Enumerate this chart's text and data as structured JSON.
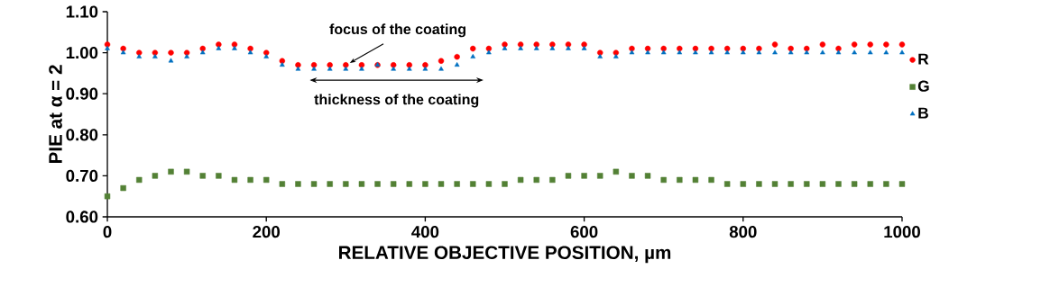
{
  "chart_data": {
    "type": "scatter",
    "xlabel": "RELATIVE OBJECTIVE POSITION, µm",
    "ylabel": "PIE at α = 2",
    "x": [
      0,
      20,
      40,
      60,
      80,
      100,
      120,
      140,
      160,
      180,
      200,
      220,
      240,
      260,
      280,
      300,
      320,
      340,
      360,
      380,
      400,
      420,
      440,
      460,
      480,
      500,
      520,
      540,
      560,
      580,
      600,
      620,
      640,
      660,
      680,
      700,
      720,
      740,
      760,
      780,
      800,
      820,
      840,
      860,
      880,
      900,
      920,
      940,
      960,
      980,
      1000
    ],
    "series": [
      {
        "name": "R",
        "color": "#ff0000",
        "marker": "circle",
        "values": [
          1.02,
          1.01,
          1.0,
          1.0,
          1.0,
          1.0,
          1.01,
          1.02,
          1.02,
          1.01,
          1.0,
          0.98,
          0.97,
          0.97,
          0.97,
          0.97,
          0.97,
          0.97,
          0.97,
          0.97,
          0.97,
          0.98,
          0.99,
          1.01,
          1.01,
          1.02,
          1.02,
          1.02,
          1.02,
          1.02,
          1.02,
          1.0,
          1.0,
          1.01,
          1.01,
          1.01,
          1.01,
          1.01,
          1.01,
          1.01,
          1.01,
          1.01,
          1.02,
          1.01,
          1.01,
          1.02,
          1.01,
          1.02,
          1.02,
          1.02,
          1.02
        ]
      },
      {
        "name": "G",
        "color": "#538135",
        "marker": "square",
        "values": [
          0.65,
          0.67,
          0.69,
          0.7,
          0.71,
          0.71,
          0.7,
          0.7,
          0.69,
          0.69,
          0.69,
          0.68,
          0.68,
          0.68,
          0.68,
          0.68,
          0.68,
          0.68,
          0.68,
          0.68,
          0.68,
          0.68,
          0.68,
          0.68,
          0.68,
          0.68,
          0.69,
          0.69,
          0.69,
          0.7,
          0.7,
          0.7,
          0.71,
          0.7,
          0.7,
          0.69,
          0.69,
          0.69,
          0.69,
          0.68,
          0.68,
          0.68,
          0.68,
          0.68,
          0.68,
          0.68,
          0.68,
          0.68,
          0.68,
          0.68,
          0.68
        ]
      },
      {
        "name": "B",
        "color": "#0070c0",
        "marker": "triangle",
        "values": [
          1.01,
          1.0,
          0.99,
          0.99,
          0.98,
          0.99,
          1.0,
          1.01,
          1.01,
          1.0,
          0.99,
          0.97,
          0.96,
          0.96,
          0.96,
          0.96,
          0.96,
          0.97,
          0.96,
          0.96,
          0.96,
          0.96,
          0.97,
          0.99,
          1.0,
          1.01,
          1.01,
          1.01,
          1.01,
          1.01,
          1.01,
          0.99,
          0.99,
          1.0,
          1.0,
          1.0,
          1.0,
          1.0,
          1.0,
          1.0,
          1.0,
          1.0,
          1.0,
          1.0,
          1.0,
          1.0,
          1.0,
          1.0,
          1.0,
          1.0,
          1.0
        ]
      }
    ],
    "xlim": [
      0,
      1000
    ],
    "xticks": [
      0,
      200,
      400,
      600,
      800,
      1000
    ],
    "ylim": [
      0.6,
      1.1
    ],
    "yticks": [
      {
        "value": 0.6,
        "label": "0.60"
      },
      {
        "value": 0.7,
        "label": "0.70"
      },
      {
        "value": 0.8,
        "label": "0.80"
      },
      {
        "value": 0.9,
        "label": "0.90"
      },
      {
        "value": 1.0,
        "label": "1.00"
      },
      {
        "value": 1.1,
        "label": "1.10"
      }
    ],
    "annotations": [
      {
        "text": "focus of the coating",
        "x": 305,
        "y": 0.975
      },
      "thickness of the coating"
    ],
    "grid": false,
    "legend": "right"
  }
}
